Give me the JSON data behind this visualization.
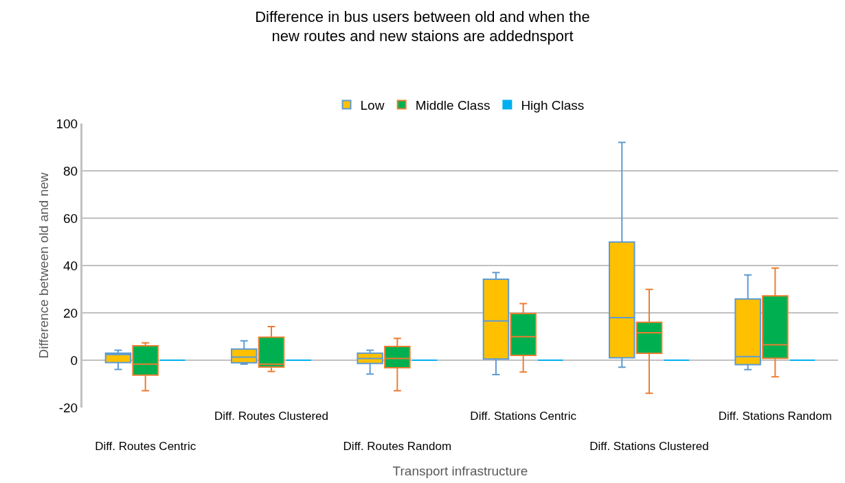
{
  "chart_data": {
    "type": "box",
    "title": "Difference in bus users between old and when the new routes and new staions are addednsport",
    "xlabel": "Transport infrastructure",
    "ylabel": "Difference between old and new",
    "categories": [
      "Diff. Routes Centric",
      "Diff. Routes Clustered",
      "Diff. Routes Random",
      "Diff. Stations Centric",
      "Diff. Stations Clustered",
      "Diff. Stations Random"
    ],
    "series": [
      {
        "name": "Low",
        "color": "#ffc000",
        "boxes": [
          {
            "low": -3.9,
            "q1": -1,
            "median": 2.4,
            "q3": 3,
            "high": 4.2
          },
          {
            "low": -1.7,
            "q1": -1.1,
            "median": 1.3,
            "q3": 4.7,
            "high": 8.2
          },
          {
            "low": -5.9,
            "q1": -1.4,
            "median": 0.7,
            "q3": 3,
            "high": 4.2
          },
          {
            "low": -6.1,
            "q1": 0.5,
            "median": 16.6,
            "q3": 34.2,
            "high": 37
          },
          {
            "low": -3,
            "q1": 1,
            "median": 18,
            "q3": 49.9,
            "high": 92
          },
          {
            "low": -4,
            "q1": -1.9,
            "median": 1.5,
            "q3": 25.9,
            "high": 36
          }
        ]
      },
      {
        "name": "Middle Class",
        "color": "#00b050",
        "boxes": [
          {
            "low": -12.9,
            "q1": -6.3,
            "median": -1.7,
            "q3": 6.1,
            "high": 7.3
          },
          {
            "low": -4.8,
            "q1": -2.9,
            "median": -1.7,
            "q3": 9.7,
            "high": 14.2
          },
          {
            "low": -12.9,
            "q1": -3.2,
            "median": 0.7,
            "q3": 5.8,
            "high": 9.2
          },
          {
            "low": -5,
            "q1": 2,
            "median": 9.9,
            "q3": 19.7,
            "high": 23.9
          },
          {
            "low": -14,
            "q1": 2.9,
            "median": 11.6,
            "q3": 16,
            "high": 29.9
          },
          {
            "low": -7,
            "q1": 0.8,
            "median": 6.5,
            "q3": 27.2,
            "high": 38.9
          }
        ]
      },
      {
        "name": "High Class",
        "color": "#00b0f0",
        "boxes": [
          {
            "low": 0,
            "q1": 0,
            "median": 0,
            "q3": 0,
            "high": 0
          },
          {
            "low": 0,
            "q1": 0,
            "median": 0,
            "q3": 0,
            "high": 0
          },
          {
            "low": 0,
            "q1": 0,
            "median": 0,
            "q3": 0,
            "high": 0
          },
          {
            "low": 0,
            "q1": 0,
            "median": 0,
            "q3": 0,
            "high": 0
          },
          {
            "low": 0,
            "q1": 0,
            "median": 0,
            "q3": 0,
            "high": 0
          },
          {
            "low": 0,
            "q1": 0,
            "median": 0,
            "q3": 0,
            "high": 0
          }
        ]
      }
    ],
    "ylim": [
      -20,
      100
    ],
    "yticks": [
      -20,
      0,
      20,
      40,
      60,
      80,
      100
    ],
    "grid": "y",
    "legend": "top"
  }
}
